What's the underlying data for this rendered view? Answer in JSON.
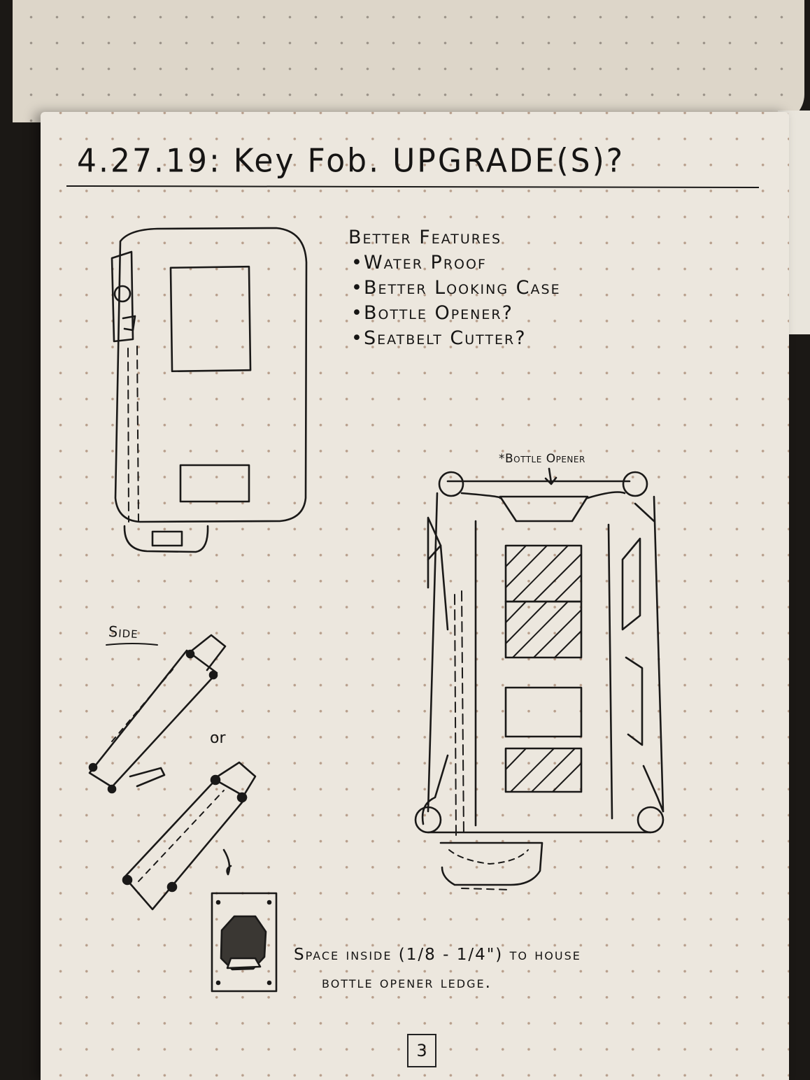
{
  "heading": "4.27.19: Key Fob. UPGRADE(S)?",
  "features": {
    "heading": "Better Features",
    "items": [
      "Water Proof",
      "Better Looking Case",
      "Bottle Opener?",
      "Seatbelt Cutter?"
    ]
  },
  "callout": "*Bottle Opener",
  "side_label": "Side",
  "or_label": "or",
  "note": {
    "line1": "Space inside (1/8 - 1/4\") to house",
    "line2": "bottle opener ledge."
  },
  "page_number": "3",
  "colors": {
    "paper": "#ece7de",
    "ink": "#161514",
    "dots": "#b89f8c",
    "background": "#1b1815"
  }
}
